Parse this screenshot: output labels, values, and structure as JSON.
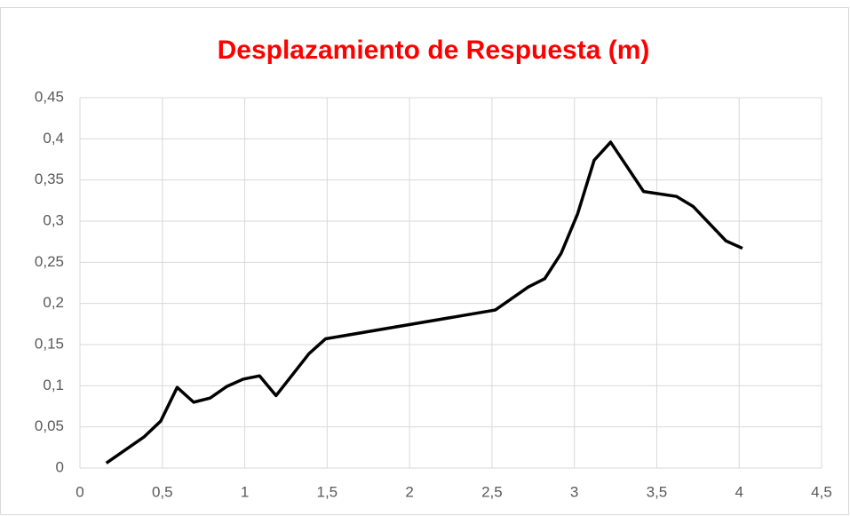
{
  "chart_data": {
    "type": "line",
    "title": "Desplazamiento de Respuesta (m)",
    "x": [
      0.16,
      0.39,
      0.49,
      0.59,
      0.69,
      0.79,
      0.89,
      0.99,
      1.09,
      1.19,
      1.39,
      1.49,
      2.52,
      2.72,
      2.82,
      2.92,
      3.02,
      3.12,
      3.22,
      3.32,
      3.42,
      3.62,
      3.72,
      3.92,
      4.02
    ],
    "series": [
      {
        "color": "#000000",
        "values": [
          0.006,
          0.038,
          0.057,
          0.098,
          0.08,
          0.085,
          0.099,
          0.108,
          0.112,
          0.088,
          0.139,
          0.157,
          0.192,
          0.22,
          0.23,
          0.261,
          0.309,
          0.374,
          0.396,
          0.366,
          0.336,
          0.33,
          0.318,
          0.276,
          0.267
        ]
      }
    ],
    "xlim": [
      0,
      4.5
    ],
    "xticks": [
      0,
      {
        "value": 0.5,
        "label": "0,5"
      },
      1,
      {
        "value": 1.5,
        "label": "1,5"
      },
      2,
      {
        "value": 2.5,
        "label": "2,5"
      },
      3,
      {
        "value": 3.5,
        "label": "3,5"
      },
      4,
      {
        "value": 4.5,
        "label": "4,5"
      }
    ],
    "ylim": [
      0,
      0.45
    ],
    "yticks": [
      0,
      {
        "value": 0.05,
        "label": "0,05"
      },
      {
        "value": 0.1,
        "label": "0,1"
      },
      {
        "value": 0.15,
        "label": "0,15"
      },
      {
        "value": 0.2,
        "label": "0,2"
      },
      {
        "value": 0.25,
        "label": "0,25"
      },
      {
        "value": 0.3,
        "label": "0,3"
      },
      {
        "value": 0.35,
        "label": "0,35"
      },
      {
        "value": 0.4,
        "label": "0,4"
      },
      {
        "value": 0.45,
        "label": "0,45"
      }
    ],
    "grid": true,
    "title_color": "#ff0000"
  }
}
